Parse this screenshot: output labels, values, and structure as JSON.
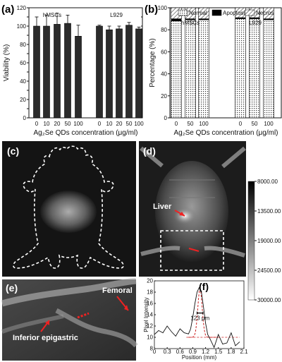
{
  "panels": {
    "a": "(a)",
    "b": "(b)",
    "c": "(c)",
    "d": "(d)",
    "e": "(e)",
    "f": "(f)"
  },
  "chart_data": [
    {
      "id": "a",
      "type": "bar",
      "ylabel": "Viability (%)",
      "xlabel": "Ag₂Se QDs concentration (μg/ml)",
      "ylim": [
        0,
        120
      ],
      "yticks": [
        0,
        10,
        20,
        30,
        40,
        50,
        60,
        70,
        80,
        90,
        100,
        110,
        120
      ],
      "groups": [
        {
          "name": "hMSCs",
          "categories": [
            "0",
            "10",
            "20",
            "50",
            "100"
          ],
          "values": [
            100,
            100,
            102,
            103,
            89
          ],
          "errors": [
            10,
            12,
            12,
            9,
            12
          ]
        },
        {
          "name": "L929",
          "categories": [
            "0",
            "10",
            "20",
            "50",
            "100"
          ],
          "values": [
            100,
            96,
            97,
            101,
            97
          ],
          "errors": [
            1,
            4,
            3,
            3,
            2
          ]
        }
      ]
    },
    {
      "id": "b",
      "type": "bar",
      "stacked": true,
      "ylabel": "Percentage (%)",
      "xlabel": "Ag₂Se QDs concentration (μg/ml)",
      "ylim": [
        0,
        100
      ],
      "yticks": [
        0,
        20,
        40,
        60,
        80,
        100
      ],
      "legend": [
        "Normal",
        "Apoptosis",
        "Necros"
      ],
      "groups": [
        {
          "name": "hMSCs",
          "categories": [
            "0",
            "50",
            "100"
          ],
          "normal": [
            88,
            89,
            89
          ],
          "apoptosis": [
            2,
            1,
            1
          ],
          "necrosis": [
            10,
            10,
            10
          ]
        },
        {
          "name": "L929",
          "categories": [
            "0",
            "50",
            "100"
          ],
          "normal": [
            90,
            90,
            89
          ],
          "apoptosis": [
            1,
            1,
            1
          ],
          "necrosis": [
            9,
            9,
            10
          ]
        }
      ]
    },
    {
      "id": "colorbar",
      "type": "heatmap",
      "ticks": [
        "8000.00",
        "13500.00",
        "19000.00",
        "24500.00",
        "30000.00"
      ]
    },
    {
      "id": "f",
      "type": "line",
      "xlabel": "Position (mm)",
      "ylabel": "Pixel Intensity",
      "xlim": [
        0,
        2.1
      ],
      "ylim": [
        8,
        20
      ],
      "xticks": [
        "0",
        "0.3",
        "0.6",
        "0.9",
        "1.2",
        "1.5",
        "1.8",
        "2.1"
      ],
      "yticks": [
        "8",
        "10",
        "12",
        "14",
        "16",
        "18",
        "20"
      ],
      "x": [
        0,
        0.1,
        0.2,
        0.3,
        0.4,
        0.5,
        0.6,
        0.7,
        0.8,
        0.85,
        0.9,
        0.95,
        1.0,
        1.05,
        1.1,
        1.15,
        1.2,
        1.25,
        1.3,
        1.4,
        1.5,
        1.6,
        1.7,
        1.8,
        1.9,
        2.0
      ],
      "y": [
        10.5,
        11.2,
        10.8,
        12.0,
        11.0,
        10.2,
        11.5,
        10.8,
        10.6,
        11.5,
        13.5,
        16.0,
        18.0,
        18.8,
        18.2,
        15.5,
        12.5,
        10.5,
        9.8,
        8.2,
        10.5,
        8.8,
        9.0,
        10.8,
        8.5,
        9.2
      ],
      "fit_note": "123 μm",
      "baseline": 10
    }
  ],
  "annotations": {
    "liver": "Liver",
    "femoral": "Femoral",
    "inferior": "Inferior epigastric",
    "fwhm": "123 μm"
  }
}
